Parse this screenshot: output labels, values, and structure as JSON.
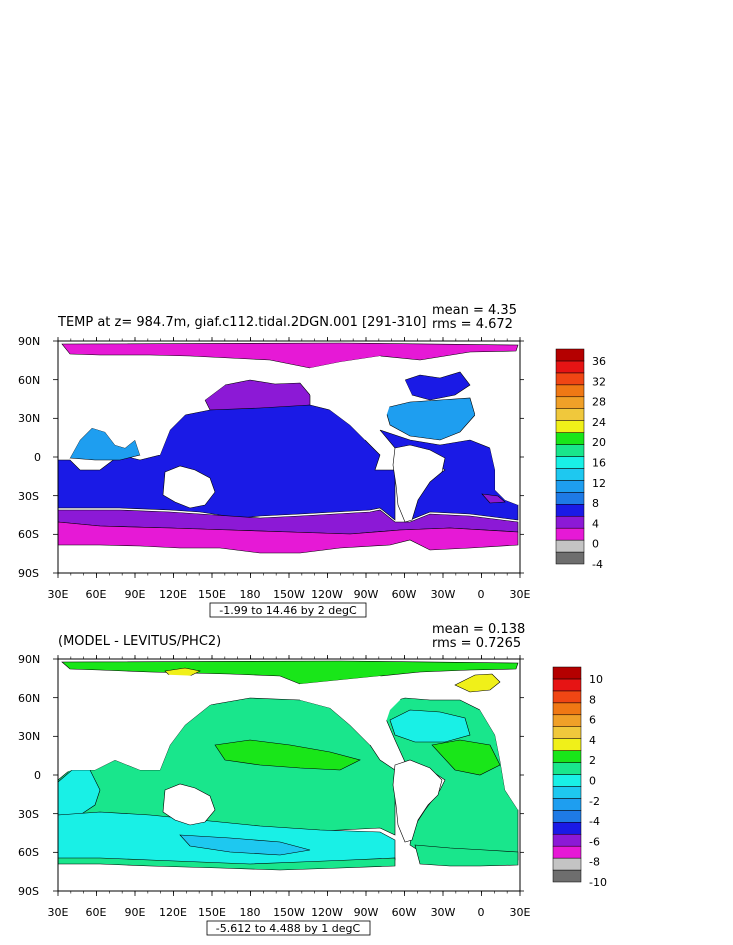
{
  "top": {
    "title": "TEMP at z= 984.7m, giaf.c112.tidal.2DGN.001 [291-310]",
    "mean_label": "mean = 4.35",
    "rms_label": "rms = 4.672",
    "range_label": "-1.99 to 14.46 by 2 degC",
    "colorbar": {
      "colors": [
        "#6e6e6e",
        "#c4c4c4",
        "#e619d6",
        "#8c19d6",
        "#1a1ae6",
        "#1e7ae6",
        "#1e9ef0",
        "#1ec8f0",
        "#19f0e6",
        "#19e68c",
        "#19e619",
        "#f0f019",
        "#f0c83c",
        "#f0a028",
        "#f07814",
        "#f04614",
        "#e61414",
        "#b40000"
      ],
      "labels": [
        "36",
        "32",
        "28",
        "24",
        "20",
        "16",
        "12",
        "8",
        "4",
        "0",
        "-4"
      ]
    }
  },
  "bottom": {
    "title": "(MODEL - LEVITUS/PHC2)",
    "mean_label": "mean = 0.138",
    "rms_label": "rms = 0.7265",
    "range_label": "-5.612 to 4.488 by 1 degC",
    "colorbar": {
      "colors": [
        "#6e6e6e",
        "#c4c4c4",
        "#e619d6",
        "#8c19d6",
        "#1a1ae6",
        "#1e7ae6",
        "#1e9ef0",
        "#1ec8f0",
        "#19f0e6",
        "#19e68c",
        "#19e619",
        "#f0f019",
        "#f0c83c",
        "#f0a028",
        "#f07814",
        "#f04614",
        "#e61414",
        "#b40000"
      ],
      "labels": [
        "10",
        "8",
        "6",
        "4",
        "2",
        "0",
        "-2",
        "-4",
        "-6",
        "-8",
        "-10"
      ]
    }
  },
  "axes": {
    "lat_ticks": [
      "90N",
      "60N",
      "30N",
      "0",
      "30S",
      "60S",
      "90S"
    ],
    "lon_ticks": [
      "30E",
      "60E",
      "90E",
      "120E",
      "150E",
      "180",
      "150W",
      "120W",
      "90W",
      "60W",
      "30W",
      "0",
      "30E"
    ]
  }
}
